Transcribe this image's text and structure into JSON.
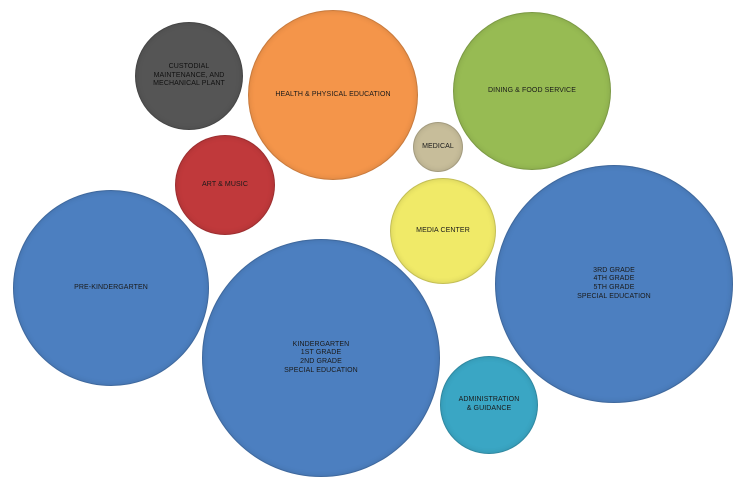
{
  "bubbles": [
    {
      "id": "custodial",
      "lines": [
        "CUSTODIAL",
        "MAINTENANCE, AND",
        "MECHANICAL PLANT"
      ],
      "color": "#555555"
    },
    {
      "id": "health",
      "lines": [
        "HEALTH & PHYSICAL EDUCATION"
      ],
      "color": "#f4954a"
    },
    {
      "id": "dining",
      "lines": [
        "DINING & FOOD SERVICE"
      ],
      "color": "#97bb53"
    },
    {
      "id": "medical",
      "lines": [
        "MEDICAL"
      ],
      "color": "#c7bd9a"
    },
    {
      "id": "art",
      "lines": [
        "ART & MUSIC"
      ],
      "color": "#c0393b"
    },
    {
      "id": "media",
      "lines": [
        "MEDIA CENTER"
      ],
      "color": "#f0ea68"
    },
    {
      "id": "prek",
      "lines": [
        "PRE-KINDERGARTEN"
      ],
      "color": "#4c7fc0"
    },
    {
      "id": "kinder",
      "lines": [
        "KINDERGARTEN",
        "1ST GRADE",
        "2ND GRADE",
        "SPECIAL EDUCATION"
      ],
      "color": "#4c7fc0"
    },
    {
      "id": "upper",
      "lines": [
        "3RD GRADE",
        "4TH GRADE",
        "5TH GRADE",
        "SPECIAL EDUCATION"
      ],
      "color": "#4c7fc0"
    },
    {
      "id": "admin",
      "lines": [
        "ADMINISTRATION",
        "& GUIDANCE"
      ],
      "color": "#3aa6c4"
    }
  ]
}
